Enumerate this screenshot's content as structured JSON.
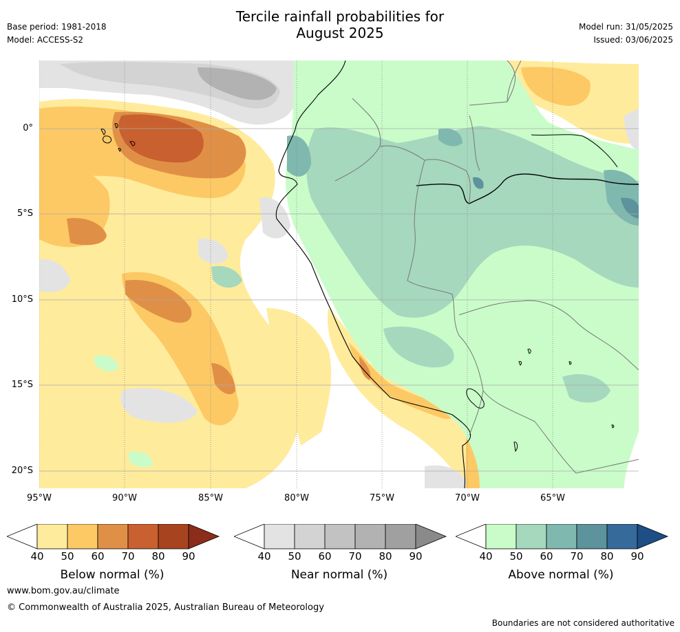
{
  "title_line1": "Tercile rainfall probabilities for",
  "title_line2": "August 2025",
  "meta_left": {
    "base_period": "Base period: 1981-2018",
    "model": "Model: ACCESS-S2"
  },
  "meta_right": {
    "model_run": "Model run: 31/05/2025",
    "issued": "Issued: 03/06/2025"
  },
  "x_ticks": [
    "95°W",
    "90°W",
    "85°W",
    "80°W",
    "75°W",
    "70°W",
    "65°W"
  ],
  "y_ticks": [
    "0°",
    "5°S",
    "10°S",
    "15°S",
    "20°S"
  ],
  "colorbars": [
    {
      "label": "Below normal (%)",
      "ticks": [
        "40",
        "50",
        "60",
        "70",
        "80",
        "90"
      ],
      "colors": [
        "#ffffff",
        "#ffeb9c",
        "#fdc965",
        "#e09046",
        "#c9602f",
        "#a7441f",
        "#8b2d1a"
      ]
    },
    {
      "label": "Near normal (%)",
      "ticks": [
        "40",
        "50",
        "60",
        "70",
        "80",
        "90"
      ],
      "colors": [
        "#ffffff",
        "#e3e3e3",
        "#d3d3d3",
        "#c2c2c2",
        "#b2b2b2",
        "#a0a0a0",
        "#8a8a8a"
      ]
    },
    {
      "label": "Above normal (%)",
      "ticks": [
        "40",
        "50",
        "60",
        "70",
        "80",
        "90"
      ],
      "colors": [
        "#ffffff",
        "#c9fcc9",
        "#a5d8bd",
        "#7fb8ae",
        "#5c939c",
        "#356a9a",
        "#1d4e85"
      ]
    }
  ],
  "footer_url": "www.bom.gov.au/climate",
  "footer_copyright": "© Commonwealth of Australia 2025, Australian Bureau of Meteorology",
  "disclaimer": "Boundaries are not considered authoritative"
}
